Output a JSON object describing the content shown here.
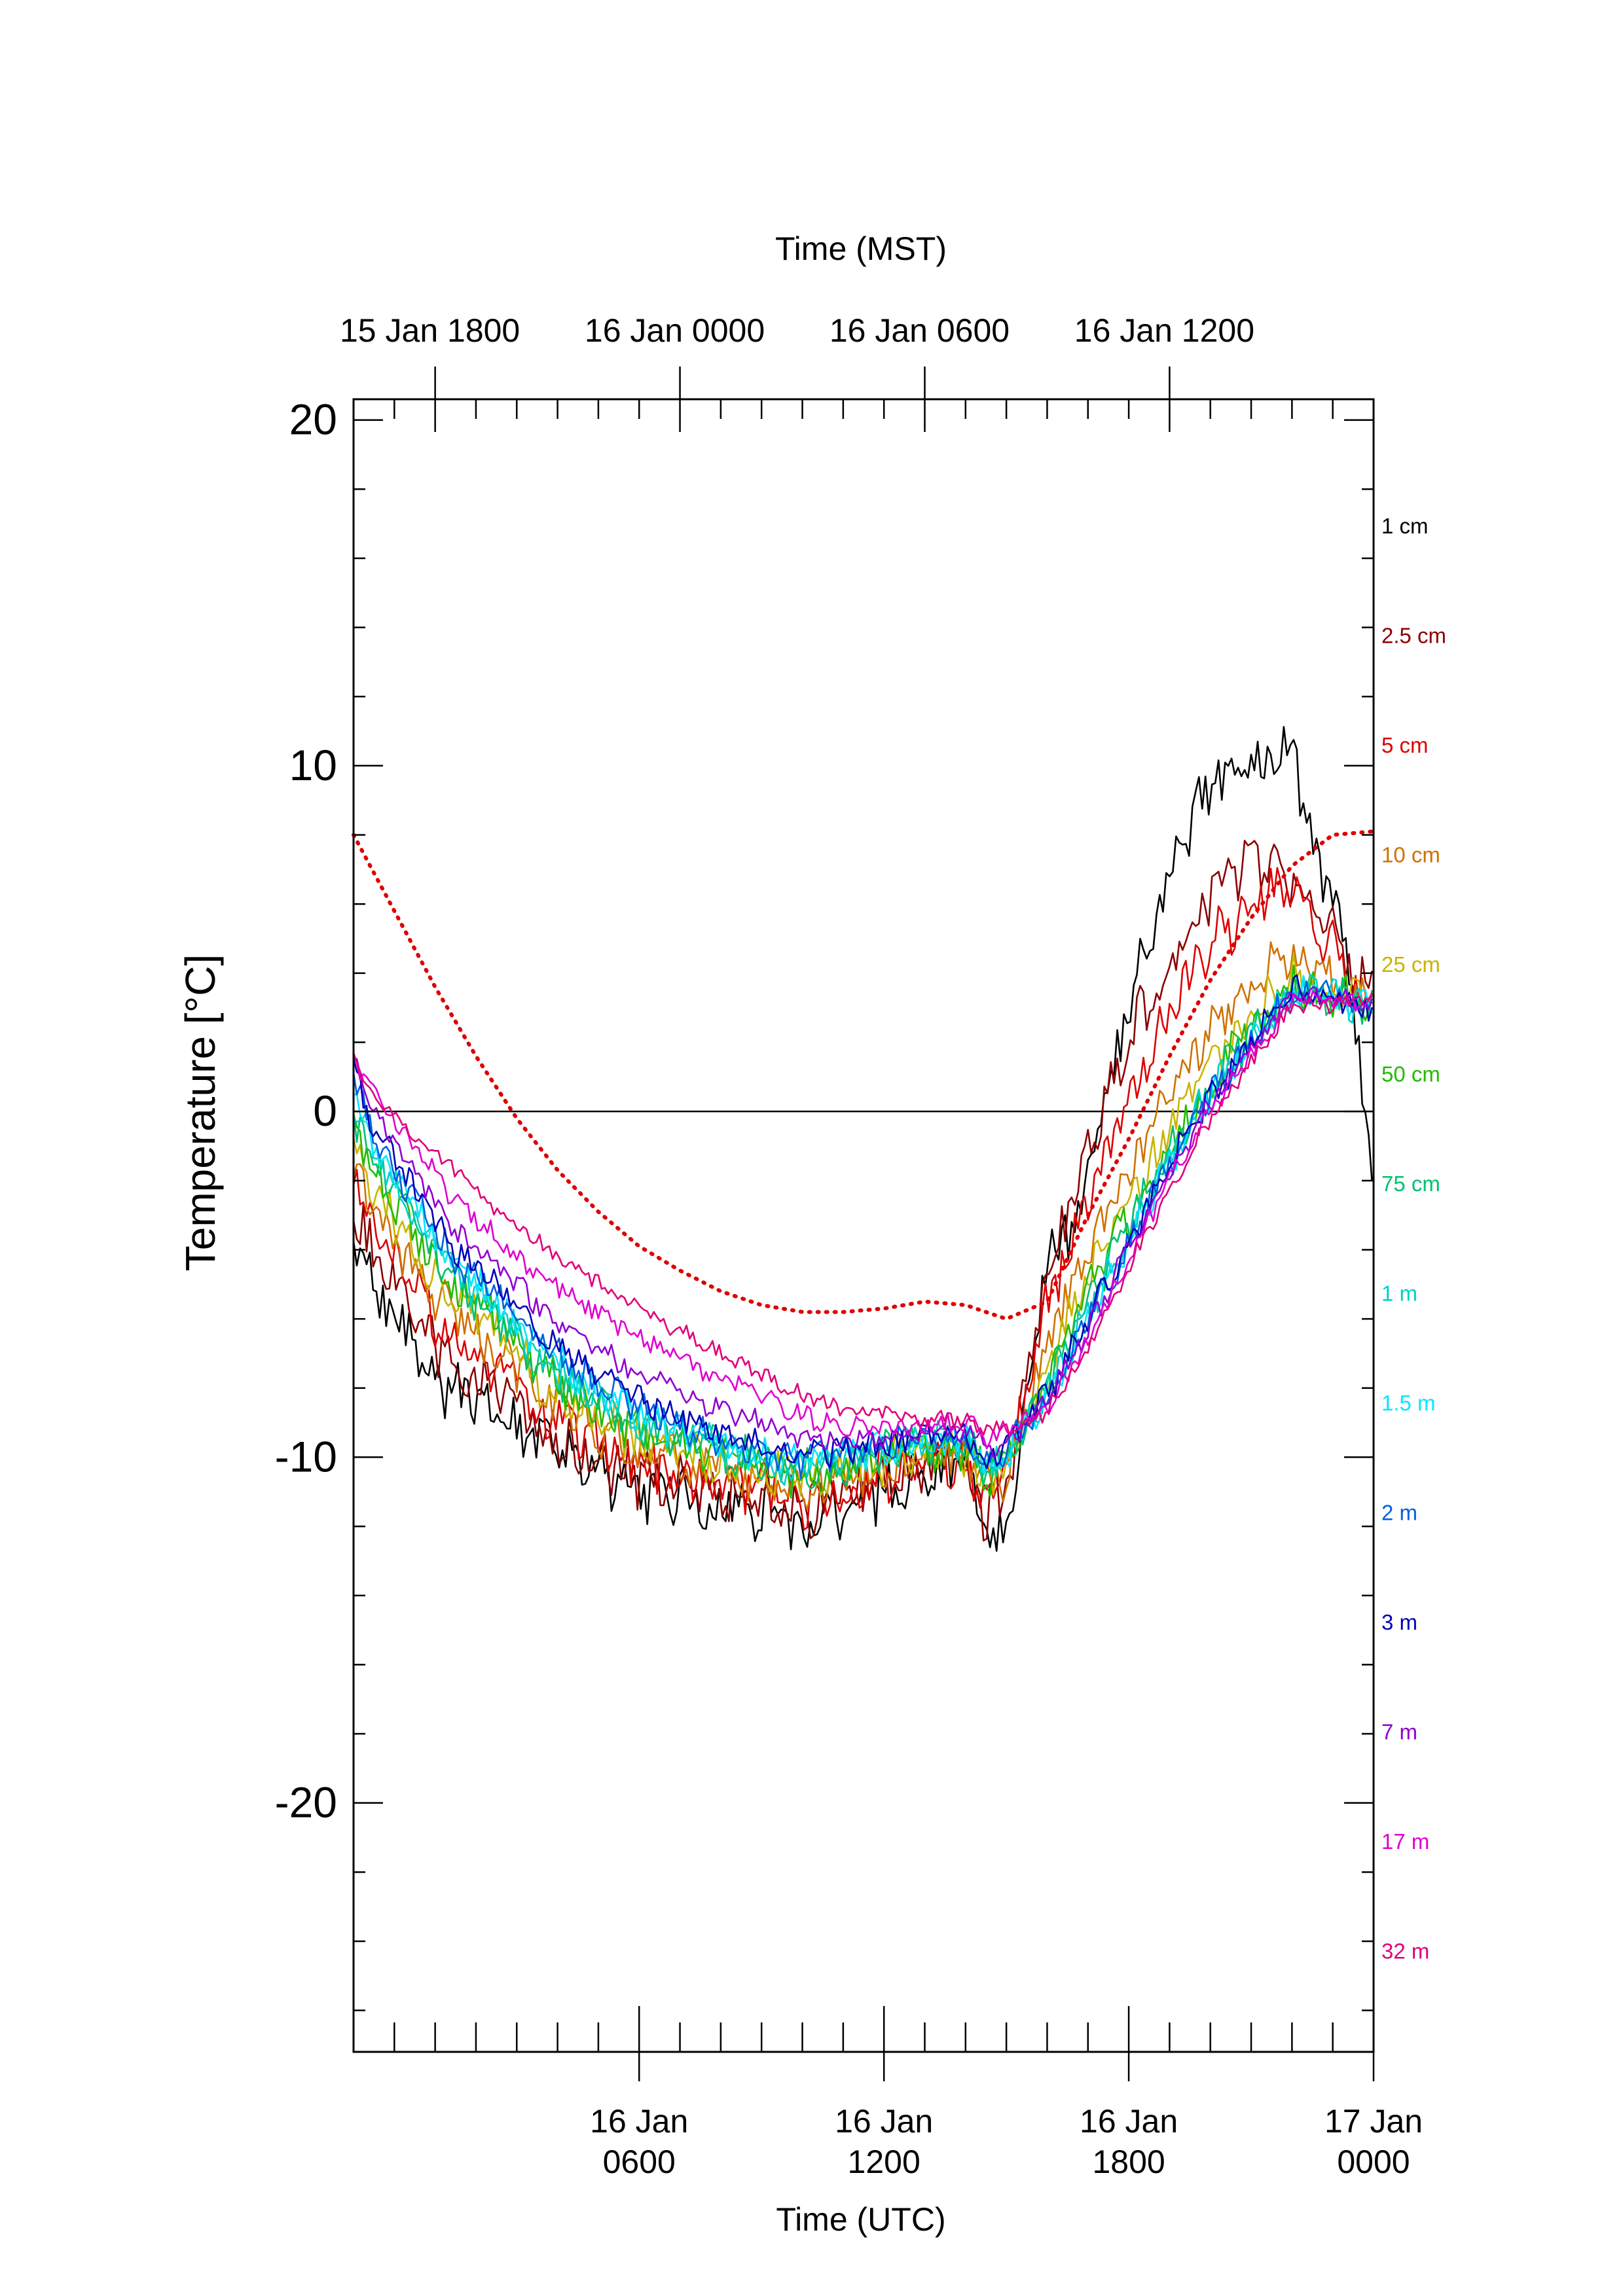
{
  "chart_data": {
    "type": "line",
    "top_axis_title": "Time (MST)",
    "bottom_axis_title": "Time (UTC)",
    "ylabel": "Temperature [°C]",
    "xlim_hours_utc": [
      -1.0,
      24.0
    ],
    "ylim": [
      -27.2,
      20.6
    ],
    "grid": false,
    "zero_line": true,
    "legend_placement": "right",
    "y_ticks": [
      {
        "value": 20,
        "label": "20"
      },
      {
        "value": 10,
        "label": "10"
      },
      {
        "value": 0,
        "label": "0"
      },
      {
        "value": -10,
        "label": "-10"
      },
      {
        "value": -20,
        "label": "-20"
      }
    ],
    "bottom_ticks": [
      {
        "hour": 6,
        "line1": "16 Jan",
        "line2": "0600"
      },
      {
        "hour": 12,
        "line1": "16 Jan",
        "line2": "1200"
      },
      {
        "hour": 18,
        "line1": "16 Jan",
        "line2": "1800"
      },
      {
        "hour": 24,
        "line1": "17 Jan",
        "line2": "0000"
      }
    ],
    "top_ticks": [
      {
        "hour": 1,
        "label": "15 Jan 1800"
      },
      {
        "hour": 7,
        "label": "16 Jan 0000"
      },
      {
        "hour": 13,
        "label": "16 Jan 0600"
      },
      {
        "hour": 19,
        "label": "16 Jan 1200"
      }
    ],
    "series": [
      {
        "name": "1 cm",
        "color": "#000000",
        "x": [
          -1.0,
          -0.5,
          0.5,
          1.5,
          2.5,
          3.5,
          4.5,
          6.0,
          7.5,
          9.0,
          10.0,
          11.0,
          12.0,
          13.0,
          14.0,
          14.5,
          15.0,
          16.0,
          16.5,
          17.0,
          17.5,
          18.0,
          19.0,
          20.0,
          21.0,
          22.0,
          22.5,
          23.0,
          23.5,
          24.0
        ],
        "y": [
          -4.0,
          -5.0,
          -6.8,
          -8.2,
          -8.8,
          -9.6,
          -10.3,
          -11.0,
          -11.3,
          -11.6,
          -12.2,
          -11.6,
          -11.0,
          -10.3,
          -10.4,
          -12.6,
          -11.8,
          -4.0,
          -3.6,
          -2.0,
          0.5,
          3.0,
          7.0,
          9.5,
          10.2,
          10.6,
          8.0,
          6.0,
          3.5,
          -2.5
        ]
      },
      {
        "name": "2.5 cm",
        "color": "#8b0000",
        "x": [
          -1.0,
          -0.5,
          0.5,
          1.5,
          2.5,
          3.5,
          4.5,
          6.0,
          7.5,
          9.0,
          10.0,
          11.0,
          12.0,
          13.0,
          14.0,
          14.5,
          15.0,
          16.0,
          17.0,
          18.0,
          19.0,
          20.0,
          21.0,
          22.0,
          23.0,
          23.5,
          24.0
        ],
        "y": [
          -3.0,
          -4.0,
          -6.0,
          -7.4,
          -8.0,
          -9.1,
          -9.8,
          -10.6,
          -10.9,
          -11.2,
          -11.6,
          -11.1,
          -10.7,
          -10.1,
          -10.2,
          -11.8,
          -11.0,
          -4.5,
          -1.0,
          2.0,
          4.5,
          6.3,
          7.3,
          6.8,
          5.2,
          3.8,
          3.4
        ]
      },
      {
        "name": "5 cm",
        "color": "#dd0000",
        "x": [
          -1.0,
          -0.5,
          0.5,
          1.5,
          2.5,
          3.5,
          4.5,
          6.0,
          7.5,
          9.0,
          10.0,
          11.0,
          12.0,
          13.0,
          14.0,
          14.5,
          15.0,
          16.0,
          17.0,
          18.0,
          19.0,
          20.0,
          21.0,
          22.0,
          23.0,
          23.5,
          24.0
        ],
        "y": [
          -2.0,
          -3.4,
          -5.2,
          -6.6,
          -7.4,
          -8.6,
          -9.3,
          -10.2,
          -10.6,
          -10.9,
          -11.3,
          -10.9,
          -10.5,
          -10.0,
          -10.1,
          -11.2,
          -10.6,
          -5.5,
          -2.5,
          0.2,
          3.0,
          4.8,
          6.0,
          6.6,
          4.6,
          3.6,
          3.4
        ]
      },
      {
        "name": "10 cm",
        "color": "#d07000",
        "x": [
          -1.0,
          -0.5,
          0.5,
          1.5,
          2.5,
          3.5,
          4.5,
          6.0,
          7.5,
          9.0,
          10.0,
          11.0,
          12.0,
          13.0,
          14.0,
          14.5,
          15.0,
          16.0,
          17.0,
          18.0,
          19.0,
          20.0,
          21.0,
          22.0,
          23.0,
          24.0
        ],
        "y": [
          -1.5,
          -2.8,
          -4.6,
          -6.0,
          -6.9,
          -8.1,
          -8.9,
          -9.8,
          -10.2,
          -10.6,
          -10.9,
          -10.6,
          -10.3,
          -9.9,
          -10.0,
          -10.9,
          -10.4,
          -6.8,
          -4.0,
          -1.9,
          0.7,
          2.4,
          3.7,
          4.4,
          3.6,
          3.2
        ]
      },
      {
        "name": "25 cm",
        "color": "#c8b400",
        "x": [
          -1.0,
          -0.5,
          0.5,
          1.5,
          2.5,
          3.5,
          4.5,
          6.0,
          7.5,
          9.0,
          10.0,
          11.0,
          12.0,
          13.0,
          14.0,
          14.5,
          15.0,
          16.0,
          17.0,
          18.0,
          19.0,
          20.0,
          21.0,
          22.0,
          23.0,
          24.0
        ],
        "y": [
          -1.0,
          -2.2,
          -4.0,
          -5.5,
          -6.4,
          -7.7,
          -8.5,
          -9.5,
          -10.0,
          -10.4,
          -10.6,
          -10.4,
          -10.1,
          -9.8,
          -9.8,
          -10.7,
          -10.2,
          -7.4,
          -4.8,
          -2.6,
          -0.6,
          1.3,
          2.8,
          3.8,
          3.5,
          3.1
        ]
      },
      {
        "name": "50 cm",
        "color": "#22bb00",
        "x": [
          -1.0,
          -0.5,
          0.5,
          1.5,
          2.5,
          3.5,
          4.5,
          6.0,
          7.5,
          9.0,
          10.0,
          11.0,
          12.0,
          13.0,
          14.0,
          14.5,
          15.0,
          16.0,
          17.0,
          18.0,
          19.0,
          20.0,
          21.0,
          22.0,
          23.0,
          24.0
        ],
        "y": [
          -0.5,
          -1.8,
          -3.6,
          -5.1,
          -6.1,
          -7.4,
          -8.3,
          -9.3,
          -9.8,
          -10.3,
          -10.5,
          -10.3,
          -10.0,
          -9.7,
          -9.7,
          -10.6,
          -10.1,
          -7.8,
          -5.3,
          -3.1,
          -1.0,
          0.9,
          2.4,
          3.6,
          3.4,
          3.0
        ]
      },
      {
        "name": "75 cm",
        "color": "#00c070",
        "x": [
          -1.0,
          -0.5,
          0.5,
          1.5,
          2.5,
          3.5,
          4.5,
          6.0,
          7.5,
          9.0,
          10.0,
          11.0,
          12.0,
          13.0,
          14.0,
          14.5,
          15.0,
          16.0,
          17.0,
          18.0,
          19.0,
          20.0,
          21.0,
          22.0,
          23.0,
          24.0
        ],
        "y": [
          0.0,
          -1.4,
          -3.3,
          -4.9,
          -5.9,
          -7.2,
          -8.1,
          -9.1,
          -9.6,
          -10.2,
          -10.4,
          -10.2,
          -9.9,
          -9.6,
          -9.6,
          -10.5,
          -10.0,
          -8.0,
          -5.6,
          -3.4,
          -1.2,
          0.7,
          2.2,
          3.5,
          3.4,
          3.0
        ]
      },
      {
        "name": "1 m",
        "color": "#00d0c8",
        "x": [
          -1.0,
          -0.5,
          0.5,
          1.5,
          2.5,
          3.5,
          4.5,
          6.0,
          7.5,
          9.0,
          10.0,
          11.0,
          12.0,
          13.0,
          14.0,
          14.5,
          15.0,
          16.0,
          17.0,
          18.0,
          19.0,
          20.0,
          21.0,
          22.0,
          23.0,
          24.0
        ],
        "y": [
          0.3,
          -1.1,
          -3.0,
          -4.7,
          -5.7,
          -7.0,
          -7.9,
          -8.9,
          -9.5,
          -10.1,
          -10.3,
          -10.1,
          -9.8,
          -9.5,
          -9.5,
          -10.4,
          -9.9,
          -8.2,
          -5.8,
          -3.6,
          -1.4,
          0.6,
          2.1,
          3.4,
          3.3,
          3.0
        ]
      },
      {
        "name": "1.5 m",
        "color": "#00e8ff",
        "x": [
          -1.0,
          -0.5,
          0.5,
          1.5,
          2.5,
          3.5,
          4.5,
          6.0,
          7.5,
          9.0,
          10.0,
          11.0,
          12.0,
          13.0,
          14.0,
          14.5,
          15.0,
          16.0,
          17.0,
          18.0,
          19.0,
          20.0,
          21.0,
          22.0,
          23.0,
          24.0
        ],
        "y": [
          0.5,
          -0.9,
          -2.8,
          -4.5,
          -5.5,
          -6.8,
          -7.7,
          -8.7,
          -9.4,
          -10.0,
          -10.2,
          -10.0,
          -9.8,
          -9.5,
          -9.5,
          -10.3,
          -9.9,
          -8.3,
          -6.0,
          -3.7,
          -1.5,
          0.5,
          2.0,
          3.4,
          3.3,
          3.0
        ]
      },
      {
        "name": "2 m",
        "color": "#0060e0",
        "x": [
          -1.0,
          -0.5,
          0.5,
          1.5,
          2.5,
          3.5,
          4.5,
          6.0,
          7.5,
          9.0,
          10.0,
          11.0,
          12.0,
          13.0,
          14.0,
          14.5,
          15.0,
          16.0,
          17.0,
          18.0,
          19.0,
          20.0,
          21.0,
          22.0,
          23.0,
          24.0
        ],
        "y": [
          0.8,
          -0.7,
          -2.6,
          -4.3,
          -5.3,
          -6.6,
          -7.5,
          -8.6,
          -9.3,
          -9.9,
          -10.1,
          -9.9,
          -9.7,
          -9.4,
          -9.4,
          -10.2,
          -9.8,
          -8.3,
          -6.0,
          -3.8,
          -1.5,
          0.5,
          2.0,
          3.5,
          3.3,
          3.0
        ]
      },
      {
        "name": "3 m",
        "color": "#0000b8",
        "x": [
          -1.0,
          -0.5,
          0.5,
          1.5,
          2.5,
          3.5,
          4.5,
          6.0,
          7.5,
          9.0,
          10.0,
          11.0,
          12.0,
          13.0,
          14.0,
          14.5,
          15.0,
          16.0,
          17.0,
          18.0,
          19.0,
          20.0,
          21.0,
          22.0,
          23.0,
          24.0
        ],
        "y": [
          1.2,
          -0.4,
          -2.3,
          -4.0,
          -5.0,
          -6.3,
          -7.2,
          -8.3,
          -9.1,
          -9.7,
          -10.0,
          -9.8,
          -9.6,
          -9.4,
          -9.3,
          -10.1,
          -9.7,
          -8.2,
          -6.0,
          -3.8,
          -1.5,
          0.4,
          2.0,
          3.6,
          3.3,
          3.0
        ]
      },
      {
        "name": "7 m",
        "color": "#9000d0",
        "x": [
          -1.0,
          -0.5,
          0.5,
          1.5,
          2.5,
          3.5,
          4.5,
          6.0,
          7.5,
          9.0,
          10.0,
          11.0,
          12.0,
          13.0,
          14.0,
          14.5,
          15.0,
          16.0,
          17.0,
          18.0,
          19.0,
          20.0,
          21.0,
          22.0,
          23.0,
          24.0
        ],
        "y": [
          1.4,
          0.0,
          -1.8,
          -3.5,
          -4.5,
          -5.6,
          -6.5,
          -7.6,
          -8.4,
          -9.0,
          -9.4,
          -9.5,
          -9.4,
          -9.3,
          -9.2,
          -9.7,
          -9.5,
          -8.4,
          -6.3,
          -4.0,
          -1.8,
          0.2,
          1.8,
          3.4,
          3.2,
          3.1
        ]
      },
      {
        "name": "17 m",
        "color": "#e000d0",
        "x": [
          -1.0,
          -0.5,
          0.5,
          1.5,
          2.5,
          3.5,
          4.5,
          6.0,
          7.5,
          9.0,
          10.0,
          11.0,
          12.0,
          13.0,
          14.0,
          14.5,
          15.0,
          16.0,
          17.0,
          18.0,
          19.0,
          20.0,
          21.0,
          22.0,
          23.0,
          24.0
        ],
        "y": [
          1.5,
          0.4,
          -1.0,
          -2.6,
          -3.6,
          -4.7,
          -5.4,
          -6.5,
          -7.4,
          -8.2,
          -8.8,
          -9.1,
          -9.1,
          -9.1,
          -9.0,
          -9.4,
          -9.3,
          -8.6,
          -6.6,
          -4.3,
          -2.0,
          0.0,
          1.6,
          3.2,
          3.2,
          3.2
        ]
      },
      {
        "name": "32 m",
        "color": "#e0007a",
        "x": [
          -1.0,
          -0.5,
          0.5,
          1.5,
          2.5,
          3.5,
          4.5,
          6.0,
          7.5,
          9.0,
          10.0,
          11.0,
          12.0,
          13.0,
          14.0,
          14.5,
          15.0,
          16.0,
          17.0,
          18.0,
          19.0,
          20.0,
          21.0,
          22.0,
          23.0,
          24.0
        ],
        "y": [
          1.5,
          0.6,
          -0.6,
          -1.8,
          -2.8,
          -3.8,
          -4.6,
          -5.7,
          -6.7,
          -7.6,
          -8.2,
          -8.6,
          -8.8,
          -8.9,
          -8.9,
          -9.2,
          -9.2,
          -8.7,
          -6.8,
          -4.5,
          -2.2,
          -0.2,
          1.4,
          3.0,
          3.1,
          3.2
        ]
      },
      {
        "color": "#dd0000",
        "dash": "dotted",
        "x": [
          -1.0,
          0.0,
          1.0,
          2.0,
          3.0,
          4.0,
          5.0,
          6.0,
          7.0,
          8.0,
          9.0,
          10.0,
          11.0,
          12.0,
          13.0,
          14.0,
          15.0,
          16.0,
          17.0,
          18.0,
          19.0,
          20.0,
          21.0,
          22.0,
          23.0,
          24.0
        ],
        "y": [
          8.0,
          5.8,
          3.6,
          1.6,
          -0.2,
          -1.7,
          -2.9,
          -3.9,
          -4.6,
          -5.2,
          -5.6,
          -5.8,
          -5.8,
          -5.7,
          -5.5,
          -5.6,
          -6.0,
          -5.5,
          -3.0,
          -0.8,
          1.6,
          3.8,
          5.6,
          7.1,
          8.0,
          8.1
        ]
      }
    ]
  }
}
